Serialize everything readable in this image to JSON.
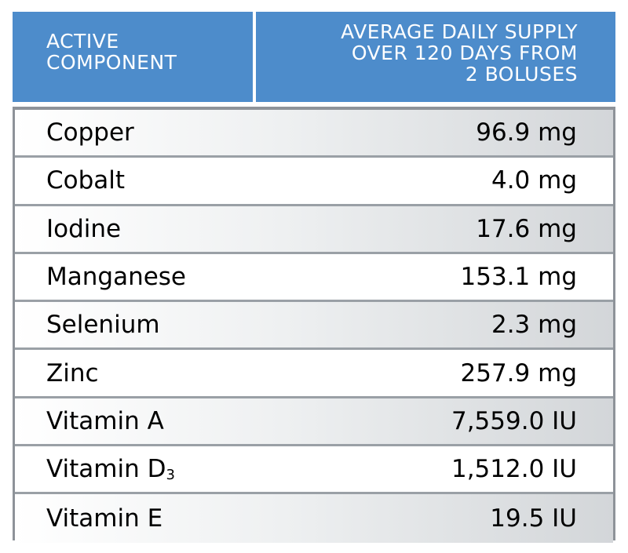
{
  "header": {
    "col1_lines": [
      "ACTIVE",
      "COMPONENT"
    ],
    "col2_lines": [
      "AVERAGE DAILY SUPPLY",
      "OVER 120 DAYS FROM",
      "2 BOLUSES"
    ]
  },
  "colors": {
    "header_bg": "#4d8ccb",
    "header_text": "#ffffff",
    "border": "#8e9399",
    "row_shade_end": "#d3d6d9"
  },
  "rows": [
    {
      "component": "Copper",
      "subscript": "",
      "supply": "96.9 mg"
    },
    {
      "component": "Cobalt",
      "subscript": "",
      "supply": "4.0 mg"
    },
    {
      "component": "Iodine",
      "subscript": "",
      "supply": "17.6 mg"
    },
    {
      "component": "Manganese",
      "subscript": "",
      "supply": "153.1 mg"
    },
    {
      "component": "Selenium",
      "subscript": "",
      "supply": "2.3 mg"
    },
    {
      "component": "Zinc",
      "subscript": "",
      "supply": "257.9 mg"
    },
    {
      "component": "Vitamin A",
      "subscript": "",
      "supply": "7,559.0 IU"
    },
    {
      "component": "Vitamin D",
      "subscript": "3",
      "supply": "1,512.0 IU"
    },
    {
      "component": "Vitamin E",
      "subscript": "",
      "supply": "19.5 IU"
    }
  ]
}
